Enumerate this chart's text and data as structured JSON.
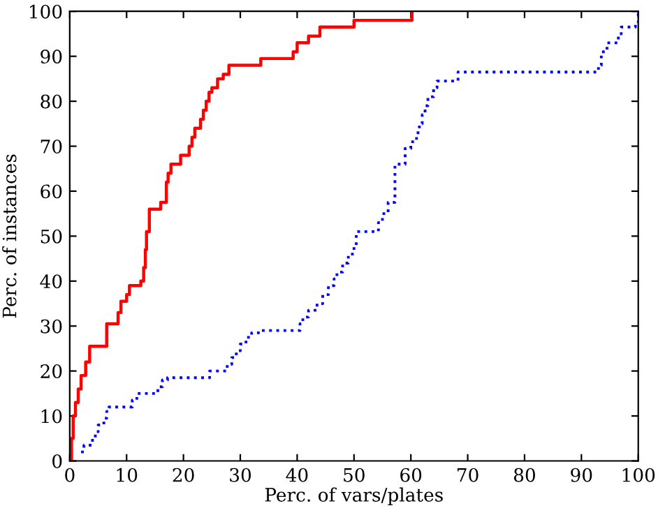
{
  "chart_data": {
    "type": "step",
    "xlabel": "Perc. of vars/plates",
    "ylabel": "Perc. of instances",
    "xlim": [
      0,
      100
    ],
    "ylim": [
      0,
      100
    ],
    "xticks": [
      0,
      10,
      20,
      30,
      40,
      50,
      60,
      70,
      80,
      90,
      100
    ],
    "yticks": [
      0,
      10,
      20,
      30,
      40,
      50,
      60,
      70,
      80,
      90,
      100
    ],
    "grid": false,
    "legend": false,
    "series": [
      {
        "color": "#ff0000",
        "line_style": "solid",
        "x": [
          0,
          0.3,
          0.6,
          1,
          1.5,
          2,
          2.8,
          3.5,
          6.5,
          8.5,
          9,
          10,
          10.5,
          12.5,
          13,
          13.3,
          13.5,
          14,
          16,
          17,
          17.3,
          17.8,
          19.5,
          21,
          21.5,
          22,
          23,
          23.5,
          24,
          24.5,
          25,
          26,
          27,
          28,
          33.6,
          39.3,
          40,
          42,
          44,
          50,
          60.2
        ],
        "values": [
          0,
          5,
          10,
          13,
          16,
          19,
          22,
          25.5,
          30.5,
          33,
          35.5,
          37,
          39,
          40,
          43,
          47,
          51,
          56,
          57.5,
          62,
          64,
          66,
          68,
          70,
          72,
          74,
          76,
          78,
          80,
          82,
          83,
          85,
          86,
          88,
          89.5,
          91,
          93,
          94.5,
          96.5,
          98,
          100
        ]
      },
      {
        "color": "#0000ff",
        "line_style": "dotted",
        "x": [
          2,
          2.5,
          4,
          4.5,
          5,
          6,
          6.5,
          6.9,
          11,
          11.8,
          15.5,
          16.3,
          17.2,
          24.6,
          27.7,
          28.5,
          29.3,
          30,
          31,
          32,
          33.6,
          40.5,
          41,
          42,
          43.5,
          44.5,
          45.5,
          46.5,
          47,
          48,
          49,
          50,
          50.4,
          54.3,
          55,
          56,
          57.2,
          59,
          60,
          61,
          61.5,
          62,
          62.5,
          63,
          64,
          64.6,
          68.3,
          93,
          93.5,
          94.5,
          96.5,
          97,
          99.5,
          100
        ],
        "values": [
          2,
          3.5,
          5,
          6.5,
          8,
          9.5,
          11,
          12,
          13.5,
          15,
          16.5,
          18,
          18.5,
          20,
          21.5,
          23,
          24.5,
          26,
          27.5,
          28.5,
          29,
          30.5,
          32,
          33.5,
          35,
          37,
          39,
          40.5,
          42,
          44,
          46,
          48,
          51,
          53,
          55,
          57.5,
          66,
          69.5,
          71,
          73,
          75,
          77,
          79,
          81,
          83,
          84.5,
          86.5,
          88,
          91,
          93,
          95,
          96.5,
          97.5,
          100
        ]
      }
    ]
  }
}
